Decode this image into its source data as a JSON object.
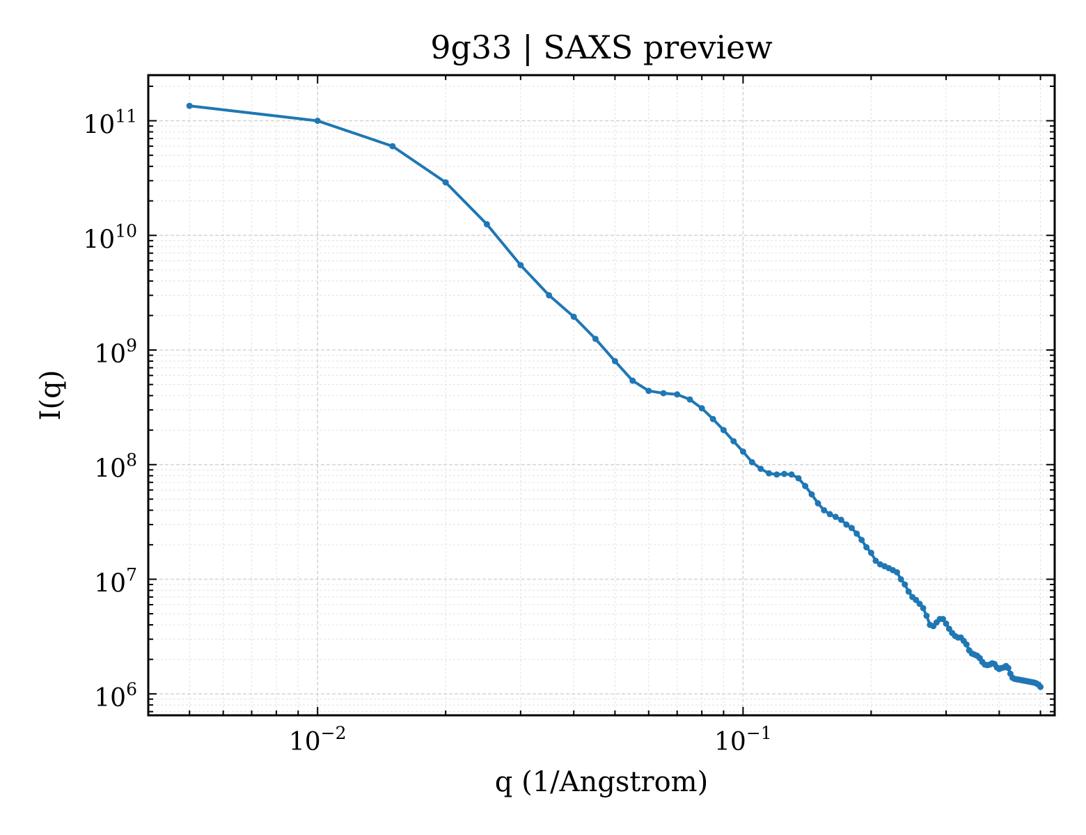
{
  "chart_data": {
    "type": "line",
    "title": "9g33 | SAXS preview",
    "xlabel": "q (1/Angstrom)",
    "ylabel": "I(q)",
    "xscale": "log",
    "yscale": "log",
    "xlim": [
      0.004,
      0.54
    ],
    "ylim": [
      650000,
      250000000000
    ],
    "grid": true,
    "xticks": [
      {
        "value": 0.01,
        "base": "10",
        "exp": "−2"
      },
      {
        "value": 0.1,
        "base": "10",
        "exp": "−1"
      }
    ],
    "yticks": [
      {
        "value": 1000000,
        "base": "10",
        "exp": "6"
      },
      {
        "value": 10000000,
        "base": "10",
        "exp": "7"
      },
      {
        "value": 100000000,
        "base": "10",
        "exp": "8"
      },
      {
        "value": 1000000000,
        "base": "10",
        "exp": "9"
      },
      {
        "value": 10000000000,
        "base": "10",
        "exp": "10"
      },
      {
        "value": 100000000000,
        "base": "10",
        "exp": "11"
      }
    ],
    "series": [
      {
        "color": "#1f77b4",
        "x": [
          0.005,
          0.01,
          0.015,
          0.02,
          0.025,
          0.03,
          0.035,
          0.04,
          0.045,
          0.05,
          0.055,
          0.06,
          0.065,
          0.07,
          0.075,
          0.08,
          0.085,
          0.09,
          0.095,
          0.1,
          0.105,
          0.11,
          0.115,
          0.12,
          0.125,
          0.13,
          0.135,
          0.14,
          0.145,
          0.15,
          0.155,
          0.16,
          0.165,
          0.17,
          0.175,
          0.18,
          0.185,
          0.19,
          0.195,
          0.2,
          0.205,
          0.21,
          0.215,
          0.22,
          0.225,
          0.23,
          0.235,
          0.24,
          0.245,
          0.25,
          0.255,
          0.26,
          0.265,
          0.27,
          0.275,
          0.28,
          0.285,
          0.29,
          0.295,
          0.3,
          0.305,
          0.31,
          0.315,
          0.32,
          0.325,
          0.33,
          0.335,
          0.34,
          0.345,
          0.35,
          0.355,
          0.36,
          0.365,
          0.37,
          0.375,
          0.38,
          0.385,
          0.39,
          0.395,
          0.4,
          0.405,
          0.41,
          0.415,
          0.42,
          0.425,
          0.43,
          0.435,
          0.44,
          0.445,
          0.45,
          0.455,
          0.46,
          0.465,
          0.47,
          0.475,
          0.48,
          0.485,
          0.49,
          0.495,
          0.5
        ],
        "y": [
          135000000000,
          100000000000,
          60000000000,
          29000000000,
          12500000000,
          5500000000,
          3000000000,
          1950000000,
          1250000000,
          800000000,
          540000000,
          440000000,
          420000000,
          410000000,
          370000000,
          310000000,
          250000000,
          200000000,
          160000000,
          130000000,
          105000000,
          92000000,
          84000000,
          82000000,
          83000000,
          82000000,
          76000000,
          65000000,
          55000000,
          46000000,
          40000000,
          37000000,
          35000000,
          33000000,
          30000000,
          28000000,
          25000000,
          22000000,
          19000000,
          17000000,
          14500000,
          13500000,
          13000000,
          12500000,
          12000000,
          11500000,
          10000000,
          9000000,
          7800000,
          7000000,
          6600000,
          6100000,
          5600000,
          4800000,
          4000000,
          3900000,
          4200000,
          4500000,
          4500000,
          4100000,
          3700000,
          3400000,
          3200000,
          3100000,
          3100000,
          2900000,
          2700000,
          2400000,
          2250000,
          2200000,
          2150000,
          2050000,
          1900000,
          1800000,
          1780000,
          1800000,
          1850000,
          1820000,
          1700000,
          1650000,
          1680000,
          1700000,
          1750000,
          1680000,
          1500000,
          1380000,
          1350000,
          1340000,
          1330000,
          1320000,
          1310000,
          1300000,
          1290000,
          1280000,
          1270000,
          1260000,
          1250000,
          1230000,
          1200000,
          1150000
        ]
      }
    ]
  }
}
